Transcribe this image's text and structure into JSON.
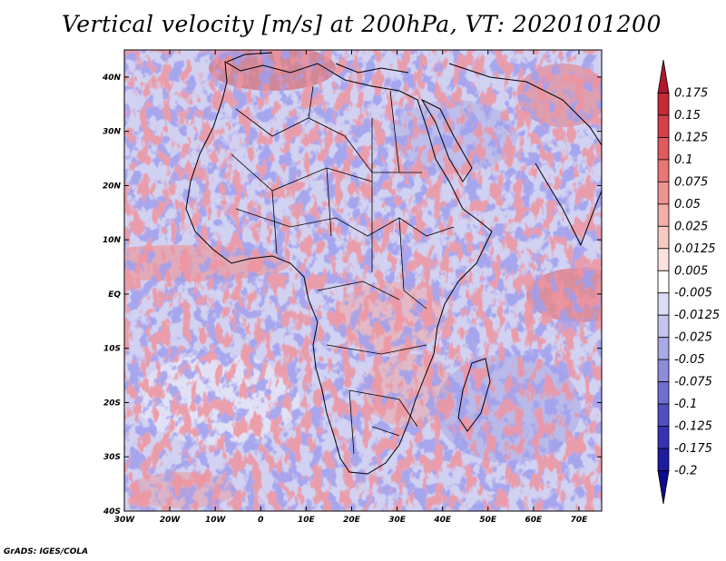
{
  "title": "Vertical velocity [m/s] at 200hPa, VT: 2020101200",
  "footer": "GrADS: IGES/COLA",
  "chart_data": {
    "type": "heatmap",
    "variable": "Vertical velocity",
    "units": "m/s",
    "level": "200hPa",
    "valid_time": "2020101200",
    "lon_range": [
      -30,
      75
    ],
    "lat_range": [
      -40,
      45
    ],
    "x_ticks": [
      "30W",
      "20W",
      "10W",
      "0",
      "10E",
      "20E",
      "30E",
      "40E",
      "50E",
      "60E",
      "70E"
    ],
    "y_ticks": [
      "40N",
      "30N",
      "20N",
      "10N",
      "EQ",
      "10S",
      "20S",
      "30S",
      "40S"
    ],
    "colorbar": {
      "levels": [
        "0.175",
        "0.15",
        "0.125",
        "0.1",
        "0.075",
        "0.05",
        "0.025",
        "0.0125",
        "0.005",
        "-0.005",
        "-0.0125",
        "-0.025",
        "-0.05",
        "-0.075",
        "-0.1",
        "-0.125",
        "-0.175",
        "-0.2"
      ],
      "colors": [
        "#b2182b",
        "#c62a35",
        "#d6404a",
        "#e05a5e",
        "#e87775",
        "#ef938e",
        "#f4aea8",
        "#f8c8c3",
        "#fce2de",
        "#ffffff",
        "#dcdcf5",
        "#c4c4ef",
        "#a9a9e6",
        "#8d8ddc",
        "#6f6fd1",
        "#5050c3",
        "#3434b3",
        "#1c1ca0",
        "#0c0c8c"
      ]
    }
  }
}
